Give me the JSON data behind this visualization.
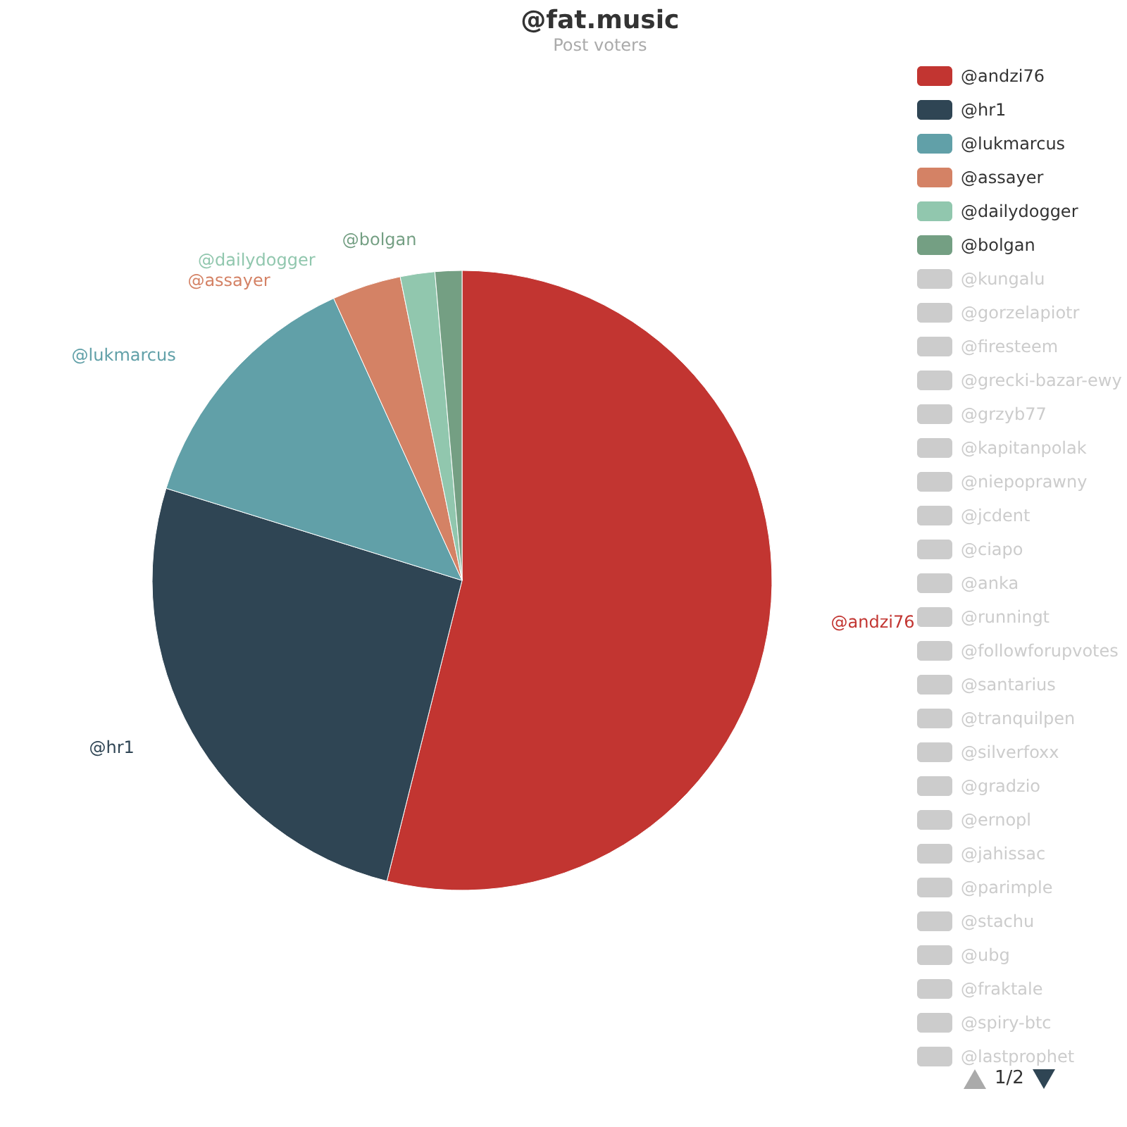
{
  "chart_data": {
    "type": "pie",
    "title": "@fat.music",
    "subtitle": "Post voters",
    "categories": [
      "@andzi76",
      "@hr1",
      "@lukmarcus",
      "@assayer",
      "@dailydogger",
      "@bolgan",
      "@kungalu",
      "@gorzelapiotr",
      "@firesteem",
      "@grecki-bazar-ewy",
      "@grzyb77",
      "@kapitanpolak",
      "@niepoprawny",
      "@jcdent",
      "@ciapo",
      "@anka",
      "@runningt",
      "@followforupvotes",
      "@santarius",
      "@tranquilpen",
      "@silverfoxx",
      "@gradzio",
      "@ernopl",
      "@jahissac",
      "@parimple",
      "@stachu",
      "@ubg",
      "@fraktale",
      "@spiry-btc",
      "@lastprophet"
    ],
    "values": [
      53.9,
      25.9,
      13.4,
      3.6,
      1.8,
      1.4,
      null,
      null,
      null,
      null,
      null,
      null,
      null,
      null,
      null,
      null,
      null,
      null,
      null,
      null,
      null,
      null,
      null,
      null,
      null,
      null,
      null,
      null,
      null,
      null
    ],
    "colors": [
      "#c23531",
      "#2f4554",
      "#61a0a8",
      "#d48265",
      "#91c7ae",
      "#749f83",
      "#cccccc",
      "#cccccc",
      "#cccccc",
      "#cccccc",
      "#cccccc",
      "#cccccc",
      "#cccccc",
      "#cccccc",
      "#cccccc",
      "#cccccc",
      "#cccccc",
      "#cccccc",
      "#cccccc",
      "#cccccc",
      "#cccccc",
      "#cccccc",
      "#cccccc",
      "#cccccc",
      "#cccccc",
      "#cccccc",
      "#cccccc",
      "#cccccc",
      "#cccccc",
      "#cccccc"
    ],
    "legend": "right",
    "annotations": [
      "1/2"
    ]
  }
}
